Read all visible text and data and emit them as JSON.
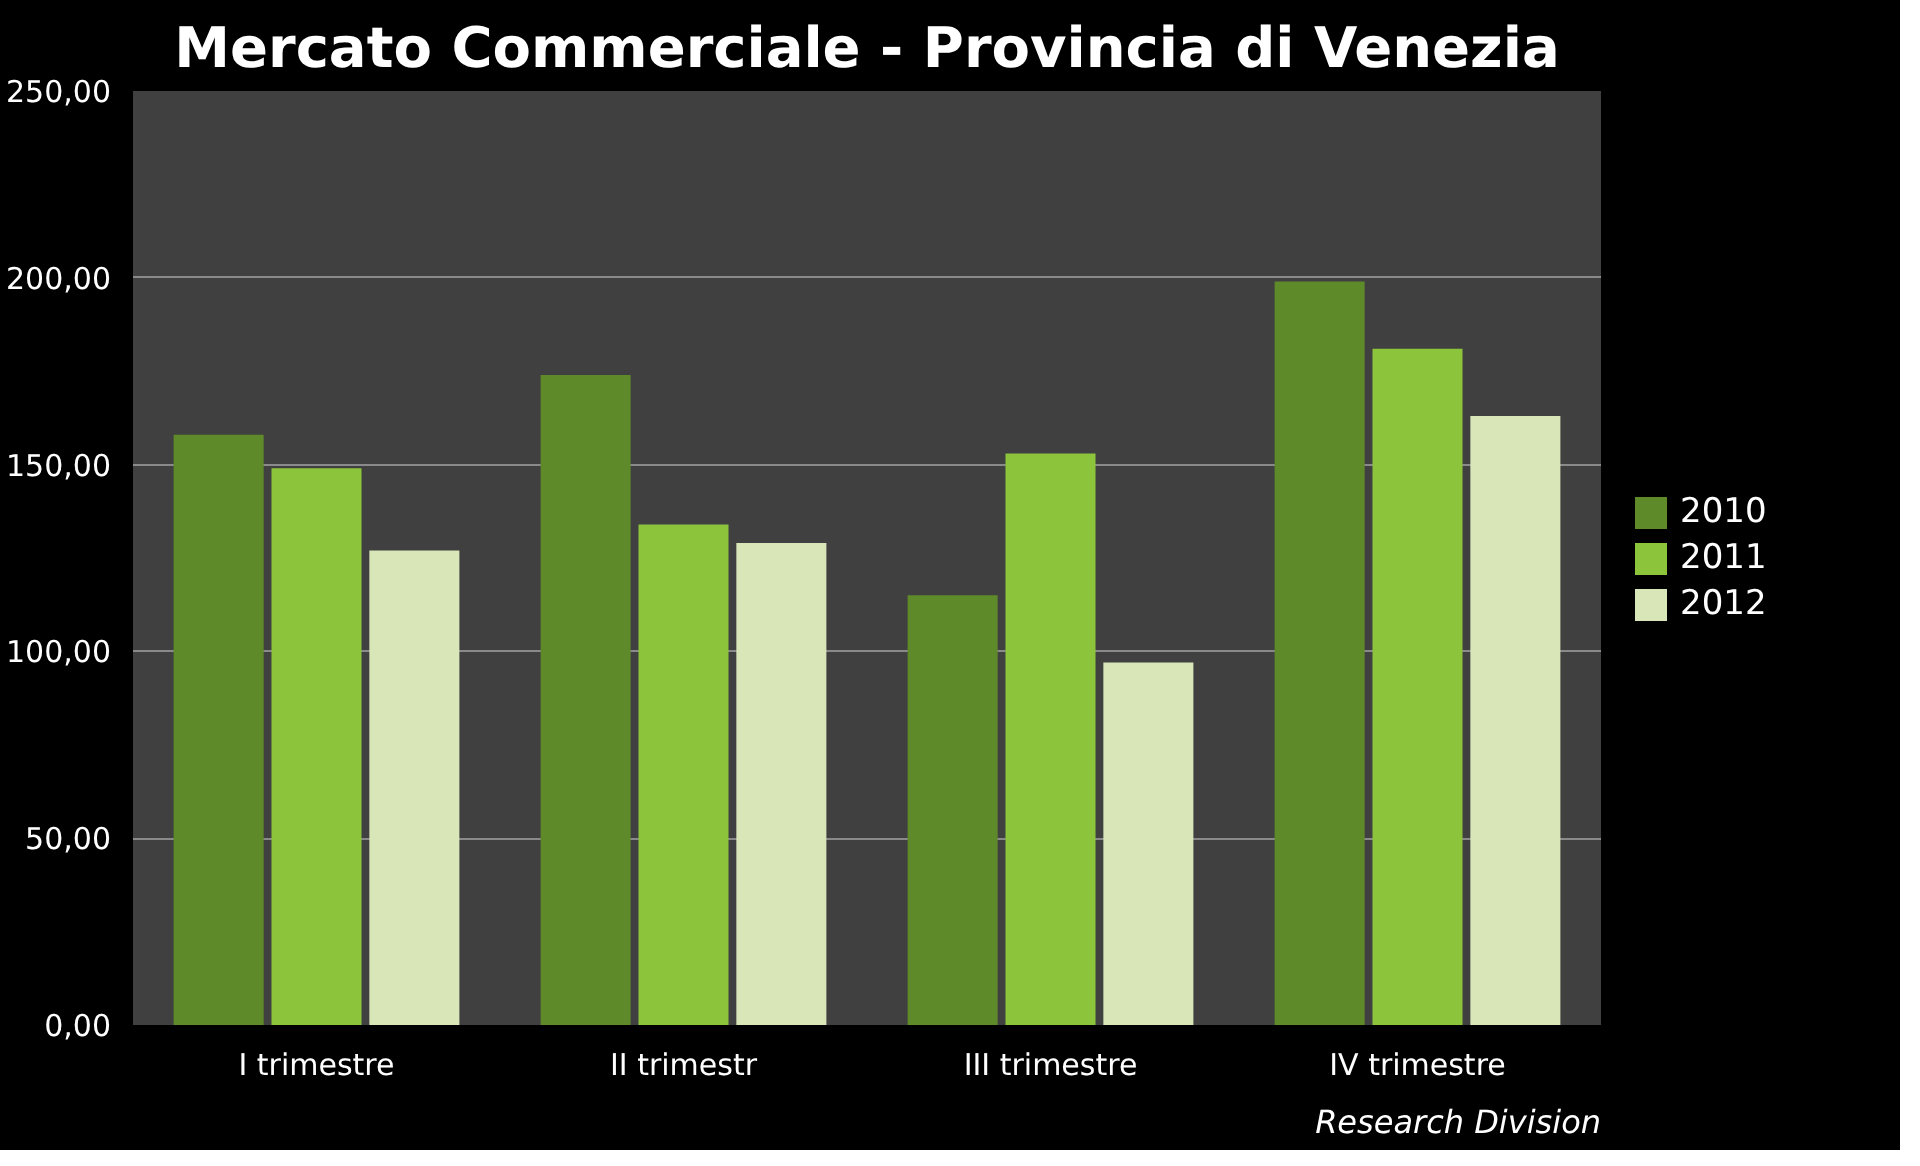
{
  "chart_data": {
    "type": "bar",
    "title": "Mercato Commerciale - Provincia di Venezia",
    "categories": [
      "I trimestre",
      "II trimestr",
      "III trimestre",
      "IV trimestre"
    ],
    "series": [
      {
        "name": "2010",
        "color": "#5f8a2a",
        "values": [
          158,
          174,
          115,
          199
        ]
      },
      {
        "name": "2011",
        "color": "#8cc43c",
        "values": [
          149,
          134,
          153,
          181
        ]
      },
      {
        "name": "2012",
        "color": "#d8e6b8",
        "values": [
          127,
          129,
          97,
          163
        ]
      }
    ],
    "ylim": [
      0,
      250
    ],
    "yticks": [
      {
        "value": 0,
        "label": "0,00"
      },
      {
        "value": 50,
        "label": "50,00"
      },
      {
        "value": 100,
        "label": "100,00"
      },
      {
        "value": 150,
        "label": "150,00"
      },
      {
        "value": 200,
        "label": "200,00"
      },
      {
        "value": 250,
        "label": "250,00"
      }
    ],
    "grid": "y",
    "legend": "right",
    "annotations": [
      "Research Division"
    ]
  }
}
